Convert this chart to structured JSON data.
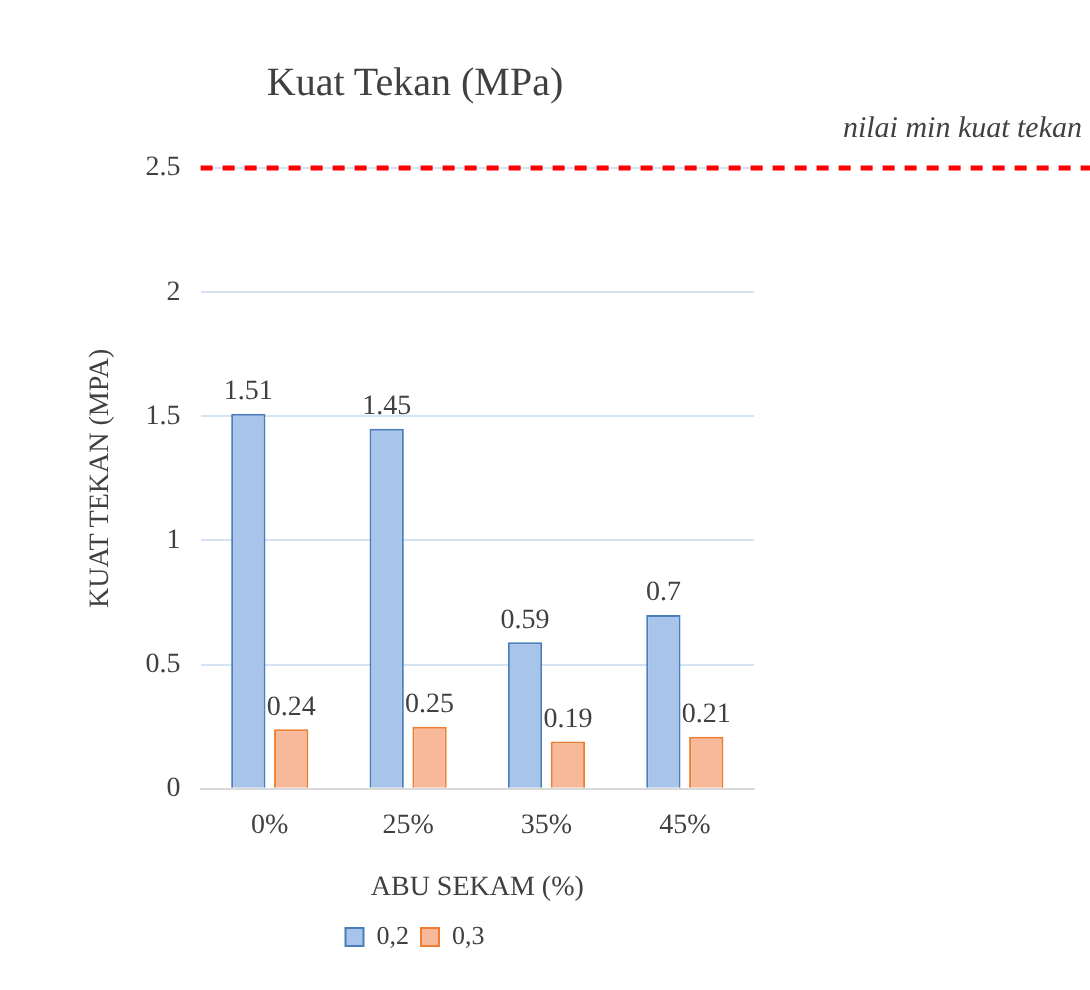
{
  "chart_data": {
    "type": "bar",
    "title": "Kuat Tekan (MPa)",
    "xlabel": "ABU SEKAM (%)",
    "ylabel": "KUAT TEKAN (MPA)",
    "categories": [
      "0%",
      "25%",
      "35%",
      "45%"
    ],
    "series": [
      {
        "name": "0,2",
        "color": "#a9c4eb",
        "values": [
          1.51,
          1.45,
          0.59,
          0.7
        ]
      },
      {
        "name": "0,3",
        "color": "#f8b99a",
        "values": [
          0.24,
          0.25,
          0.19,
          0.21
        ]
      }
    ],
    "ylim": [
      0,
      2.5
    ],
    "yticks": [
      0,
      0.5,
      1,
      1.5,
      2,
      2.5
    ],
    "grid": "y",
    "legend": "bottom",
    "data_labels": true,
    "ref_lines": [
      {
        "axis": "y",
        "value": 2.5,
        "label": "nilai min kuat tekan",
        "color": "#ff0000",
        "line_style": "dashed"
      }
    ]
  }
}
